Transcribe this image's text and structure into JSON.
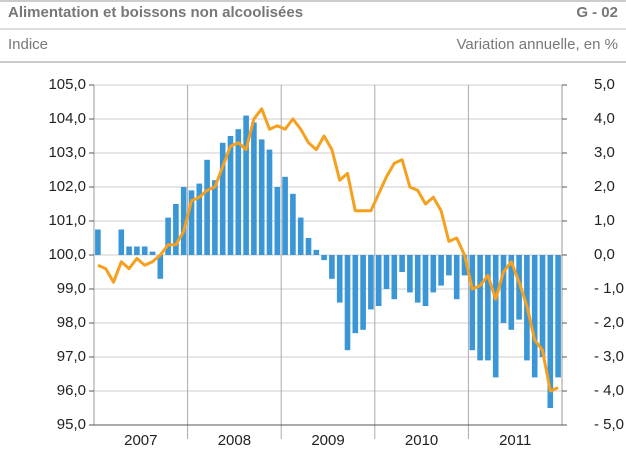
{
  "chart_data": {
    "type": "combo",
    "title": "Alimentation et boissons non alcoolisées",
    "code": "G - 02",
    "ylabel": "Indice",
    "y2label": "Variation annuelle, en %",
    "categories": [
      null,
      null,
      null,
      null,
      null,
      null,
      "2007",
      null,
      null,
      null,
      null,
      null,
      null,
      null,
      null,
      null,
      null,
      null,
      "2008",
      null,
      null,
      null,
      null,
      null,
      null,
      null,
      null,
      null,
      null,
      null,
      "2009",
      null,
      null,
      null,
      null,
      null,
      null,
      null,
      null,
      null,
      null,
      null,
      "2010",
      null,
      null,
      null,
      null,
      null,
      null,
      null,
      null,
      null,
      null,
      null,
      "2011",
      null,
      null,
      null,
      null,
      null
    ],
    "ylim": [
      95,
      105
    ],
    "yticks": [
      {
        "value": 95,
        "label": "95,0"
      },
      {
        "value": 96,
        "label": "96,0"
      },
      {
        "value": 97,
        "label": "97,0"
      },
      {
        "value": 98,
        "label": "98,0"
      },
      {
        "value": 99,
        "label": "99,0"
      },
      {
        "value": 100,
        "label": "100,0"
      },
      {
        "value": 101,
        "label": "101,0"
      },
      {
        "value": 102,
        "label": "102,0"
      },
      {
        "value": 103,
        "label": "103,0"
      },
      {
        "value": 104,
        "label": "104,0"
      },
      {
        "value": 105,
        "label": "105,0"
      }
    ],
    "y2lim": [
      -5,
      5
    ],
    "y2ticks": [
      {
        "value": -5,
        "label": "- 5,0"
      },
      {
        "value": -4,
        "label": "- 4,0"
      },
      {
        "value": -3,
        "label": "- 3,0"
      },
      {
        "value": -2,
        "label": "- 2,0"
      },
      {
        "value": -1,
        "label": "- 1,0"
      },
      {
        "value": 0,
        "label": "0,0"
      },
      {
        "value": 1,
        "label": "1,0"
      },
      {
        "value": 2,
        "label": "2,0"
      },
      {
        "value": 3,
        "label": "3,0"
      },
      {
        "value": 4,
        "label": "4,0"
      },
      {
        "value": 5,
        "label": "5,0"
      }
    ],
    "grid": true,
    "series": [
      {
        "type": "bar",
        "axis": "y2",
        "color": "#3a96d4",
        "values": [
          0.75,
          0,
          0,
          0.75,
          0.25,
          0.25,
          0.25,
          0.1,
          -0.7,
          1.1,
          1.5,
          2.0,
          1.9,
          2.1,
          2.8,
          2.2,
          3.3,
          3.5,
          3.7,
          4.1,
          3.9,
          3.4,
          3.1,
          2.0,
          2.3,
          1.8,
          1.1,
          0.5,
          0.15,
          -0.15,
          -0.7,
          -1.4,
          -2.8,
          -2.3,
          -2.2,
          -1.6,
          -1.5,
          -1.0,
          -1.3,
          -0.5,
          -1.1,
          -1.4,
          -1.5,
          -1.1,
          -0.9,
          -0.6,
          -1.3,
          -0.6,
          -2.8,
          -3.1,
          -3.1,
          -3.6,
          -2.0,
          -2.2,
          -1.9,
          -3.1,
          -3.6,
          -3.0,
          -4.5,
          -3.6
        ]
      },
      {
        "type": "line",
        "axis": "y",
        "color": "#f5a01e",
        "values": [
          99.7,
          99.6,
          99.2,
          99.8,
          99.6,
          99.9,
          99.7,
          99.8,
          100.0,
          100.3,
          100.3,
          100.7,
          101.6,
          101.7,
          101.9,
          102.0,
          102.6,
          103.2,
          103.3,
          103.1,
          104.0,
          104.3,
          103.7,
          103.8,
          103.7,
          104.0,
          103.7,
          103.3,
          103.1,
          103.5,
          103.1,
          102.2,
          102.4,
          101.3,
          101.3,
          101.3,
          101.8,
          102.3,
          102.7,
          102.8,
          102.0,
          101.9,
          101.5,
          101.7,
          101.3,
          100.4,
          100.5,
          100.0,
          99.0,
          99.1,
          99.4,
          98.7,
          99.5,
          99.8,
          99.2,
          98.5,
          97.5,
          97.2,
          96.0,
          96.1
        ]
      }
    ]
  }
}
